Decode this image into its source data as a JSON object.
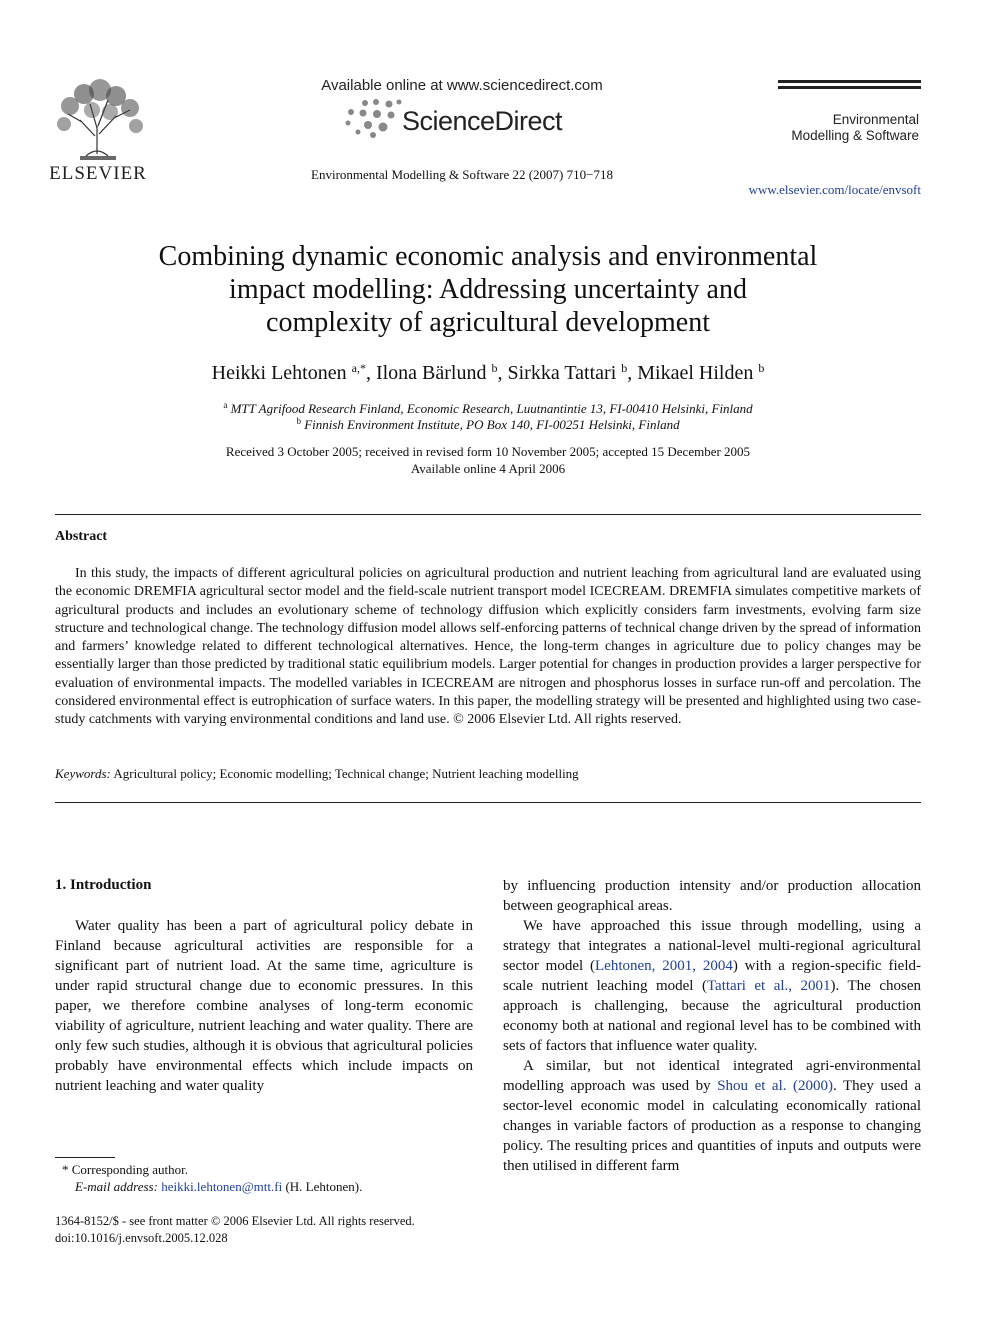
{
  "header": {
    "publisher": "ELSEVIER",
    "available_online": "Available online at www.sciencedirect.com",
    "platform": "ScienceDirect",
    "citation": "Environmental Modelling & Software 22 (2007) 710−718",
    "journal_lines": [
      "Environmental",
      "Modelling & Software"
    ],
    "journal_url": "www.elsevier.com/locate/envsoft"
  },
  "article": {
    "title_lines": [
      "Combining dynamic economic analysis and environmental",
      "impact modelling: Addressing uncertainty and",
      "complexity of agricultural development"
    ],
    "separator": ", ",
    "authors": [
      {
        "name": "Heikki Lehtonen",
        "affil": "a,*"
      },
      {
        "name": "Ilona Bärlund",
        "affil": "b"
      },
      {
        "name": "Sirkka Tattari",
        "affil": "b"
      },
      {
        "name": "Mikael Hilden",
        "affil": "b"
      }
    ],
    "affiliations": [
      {
        "mark": "a",
        "text": "MTT Agrifood Research Finland, Economic Research, Luutnantintie 13, FI-00410 Helsinki, Finland"
      },
      {
        "mark": "b",
        "text": "Finnish Environment Institute, PO Box 140, FI-00251 Helsinki, Finland"
      }
    ],
    "dates": [
      "Received 3 October 2005; received in revised form 10 November 2005; accepted 15 December 2005",
      "Available online 4 April 2006"
    ]
  },
  "abstract": {
    "heading": "Abstract",
    "text": "In this study, the impacts of different agricultural policies on agricultural production and nutrient leaching from agricultural land are evaluated using the economic DREMFIA agricultural sector model and the field-scale nutrient transport model ICECREAM. DREMFIA simulates competitive markets of agricultural products and includes an evolutionary scheme of technology diffusion which explicitly considers farm investments, evolving farm size structure and technological change. The technology diffusion model allows self-enforcing patterns of technical change driven by the spread of information and farmers’ knowledge related to different technological alternatives. Hence, the long-term changes in agriculture due to policy changes may be essentially larger than those predicted by traditional static equilibrium models. Larger potential for changes in production provides a larger perspective for evaluation of environmental impacts. The modelled variables in ICECREAM are nitrogen and phosphorus losses in surface run-off and percolation. The considered environmental effect is eutrophication of surface waters. In this paper, the modelling strategy will be presented and highlighted using two case-study catchments with varying environmental conditions and land use.",
    "copyright": "© 2006 Elsevier Ltd. All rights reserved.",
    "keywords_label": "Keywords:",
    "keywords": "Agricultural policy; Economic modelling; Technical change; Nutrient leaching modelling"
  },
  "body": {
    "section_heading": "1. Introduction",
    "left_paragraphs": [
      [
        "Water quality has been a part of agricultural policy debate in Finland because agricultural activities are responsible for a significant part of nutrient load. At the same time, agriculture is under rapid structural change due to economic pressures. In this paper, we therefore combine analyses of long-term economic viability of agriculture, nutrient leaching and water quality. There are only few such studies, although it is obvious that agricultural policies probably have environmental effects which include impacts on nutrient leaching and water quality"
      ]
    ],
    "right_paragraphs": [
      [
        "by influencing production intensity and/or production allocation between geographical areas."
      ],
      [
        "We have approached this issue through modelling, using a strategy that integrates a national-level multi-regional agricultural sector model (",
        {
          "cite": "Lehtonen, 2001, 2004"
        },
        ") with a region-specific field-scale nutrient leaching model (",
        {
          "cite": "Tattari et al., 2001"
        },
        "). The chosen approach is challenging, because the agricultural production economy both at national and regional level has to be combined with sets of factors that influence water quality."
      ],
      [
        "A similar, but not identical integrated agri-environmental modelling approach was used by ",
        {
          "cite": "Shou et al. (2000)"
        },
        ". They used a sector-level economic model in calculating economically rational changes in variable factors of production as a response to changing policy. The resulting prices and quantities of inputs and outputs were then utilised in different farm"
      ]
    ]
  },
  "footnote": {
    "mark": "*",
    "corresponding": "Corresponding author.",
    "email_label": "E-mail address:",
    "email": "heikki.lehtonen@mtt.fi",
    "email_owner": "(H. Lehtonen)."
  },
  "footer": [
    "1364-8152/$ - see front matter © 2006 Elsevier Ltd. All rights reserved.",
    "doi:10.1016/j.envsoft.2005.12.028"
  ]
}
